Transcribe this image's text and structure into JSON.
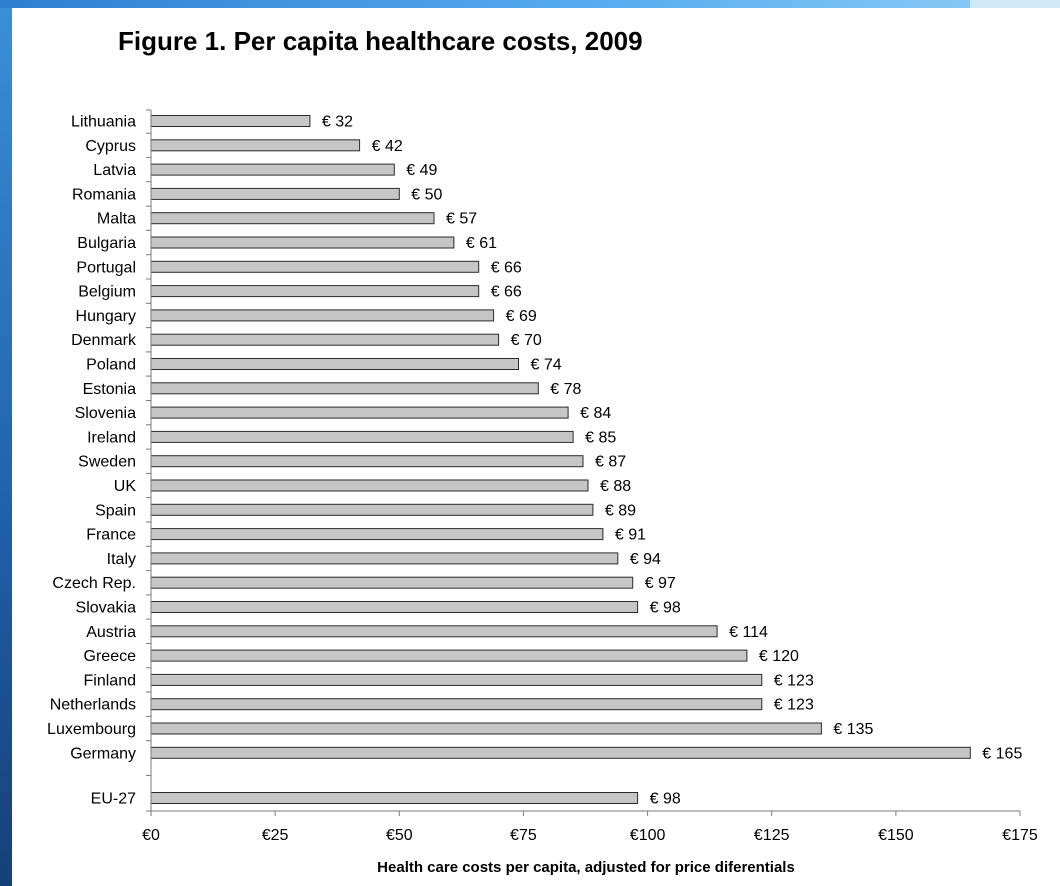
{
  "chart_data": {
    "type": "bar",
    "orientation": "horizontal",
    "title": "Figure 1. Per capita healthcare costs, 2009",
    "xlabel": "Health care costs per capita, adjusted for price diferentials",
    "ylabel": "",
    "xlim": [
      0,
      175
    ],
    "x_ticks": [
      0,
      25,
      50,
      75,
      100,
      125,
      150,
      175
    ],
    "x_tick_labels": [
      "€0",
      "€25",
      "€50",
      "€75",
      "€100",
      "€125",
      "€150",
      "€175"
    ],
    "categories": [
      "Lithuania",
      "Cyprus",
      "Latvia",
      "Romania",
      "Malta",
      "Bulgaria",
      "Portugal",
      "Belgium",
      "Hungary",
      "Denmark",
      "Poland",
      "Estonia",
      "Slovenia",
      "Ireland",
      "Sweden",
      "UK",
      "Spain",
      "France",
      "Italy",
      "Czech Rep.",
      "Slovakia",
      "Austria",
      "Greece",
      "Finland",
      "Netherlands",
      "Luxembourg",
      "Germany",
      "EU-27"
    ],
    "values": [
      32,
      42,
      49,
      50,
      57,
      61,
      66,
      66,
      69,
      70,
      74,
      78,
      84,
      85,
      87,
      88,
      89,
      91,
      94,
      97,
      98,
      114,
      120,
      123,
      123,
      135,
      165,
      98
    ],
    "data_labels": [
      "€ 32",
      "€ 42",
      "€ 49",
      "€ 50",
      "€ 57",
      "€ 61",
      "€ 66",
      "€ 66",
      "€ 69",
      "€ 70",
      "€ 74",
      "€ 78",
      "€ 84",
      "€ 85",
      "€ 87",
      "€ 88",
      "€ 89",
      "€ 91",
      "€ 94",
      "€ 97",
      "€ 98",
      "€ 114",
      "€ 120",
      "€ 123",
      "€ 123",
      "€ 135",
      "€ 165",
      "€ 98"
    ],
    "grid": false,
    "legend": "none",
    "bar_color": "#c6c6c6"
  }
}
